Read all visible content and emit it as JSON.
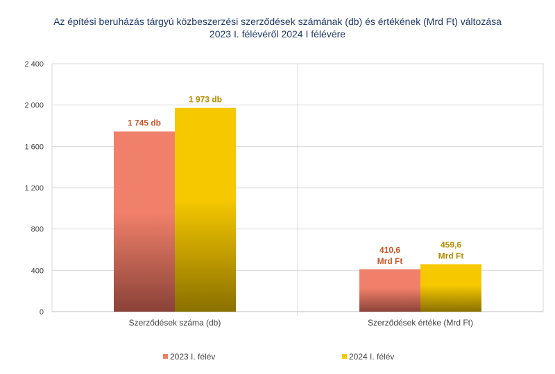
{
  "chart_data": {
    "type": "bar",
    "title_line1": "Az építési beruházás tárgyú közbeszerzési szerződések számának (db) és értékének (Mrd Ft) változása",
    "title_line2": "2023 I. félévéről 2024 I félévére",
    "categories": [
      "Szerződések száma (db)",
      "Szerződések értéke (Mrd Ft)"
    ],
    "series": [
      {
        "name": "2023 I. félév",
        "values": [
          1745,
          410.6
        ],
        "labels": [
          [
            "1 745 db"
          ],
          [
            "410,6",
            "Mrd Ft"
          ]
        ],
        "color_top": "#f0806a",
        "color_bottom": "#8a4238",
        "label_color": "#c0582a"
      },
      {
        "name": "2024 I. félév",
        "values": [
          1973,
          459.6
        ],
        "labels": [
          [
            "1 973 db"
          ],
          [
            "459,6",
            "Mrd Ft"
          ]
        ],
        "color_top": "#f5c800",
        "color_bottom": "#8a7000",
        "label_color": "#b08c00"
      }
    ],
    "ylim": [
      0,
      2400
    ],
    "yticks": [
      0,
      400,
      800,
      1200,
      1600,
      2000,
      2400
    ],
    "ytick_labels": [
      "0",
      "400",
      "800",
      "1 200",
      "1 600",
      "2 000",
      "2 400"
    ],
    "grid": true,
    "legend_position": "bottom"
  }
}
